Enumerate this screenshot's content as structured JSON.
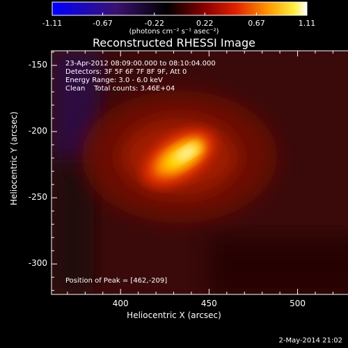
{
  "colorbar": {
    "ticks": [
      "-1.11",
      "-0.67",
      "-0.22",
      "0.22",
      "0.67",
      "1.11"
    ],
    "min": -1.11,
    "max": 1.11,
    "units_label": "(photons cm⁻² s⁻¹ asec⁻²)",
    "palette": [
      "#0000ff",
      "#3a1270",
      "#000000",
      "#7a0000",
      "#e01a00",
      "#ff8c00",
      "#ffe000",
      "#ffffff"
    ]
  },
  "image": {
    "title": "Reconstructed RHESSI Image",
    "time_range": "23-Apr-2012 08:09:00.000 to 08:10:04.000",
    "detectors": "Detectors: 3F 5F 6F 7F 8F 9F, Att 0",
    "energy_range": "Energy Range: 3.0 - 6.0 keV",
    "method_counts": "Clean    Total counts: 3.46E+04",
    "peak_position": "Position of Peak = [462,-209]",
    "peak_arcsec": {
      "x": 462,
      "y": -209
    },
    "x_axis": {
      "label": "Heliocentric X (arcsec)",
      "range": [
        361,
        545
      ],
      "ticks": [
        "400",
        "450",
        "500"
      ]
    },
    "y_axis": {
      "label": "Heliocentric Y (arcsec)",
      "range": [
        -323,
        -139
      ],
      "ticks": [
        "-150",
        "-200",
        "-250",
        "-300"
      ]
    }
  },
  "footer": {
    "date": "2-May-2014 21:02"
  }
}
